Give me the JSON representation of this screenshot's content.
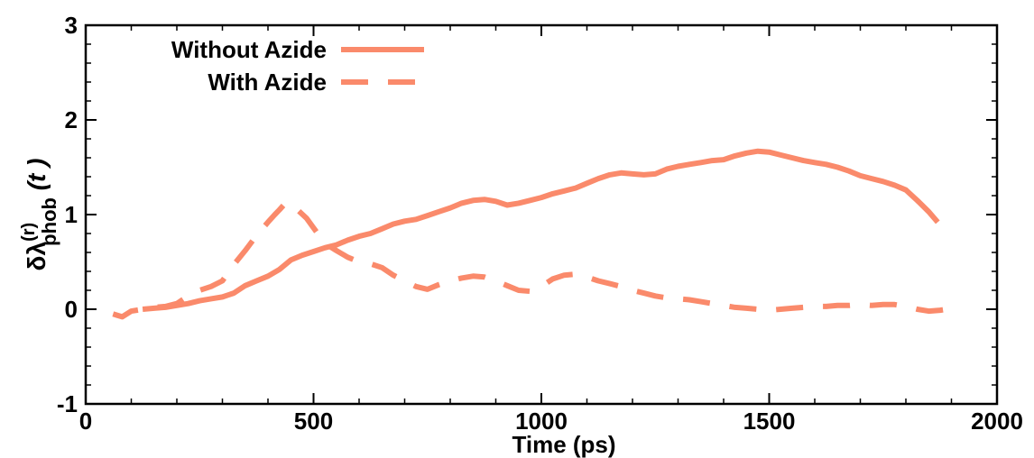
{
  "chart_data": {
    "type": "line",
    "xlabel": "Time (ps)",
    "ylabel": {
      "prefix": "δλ",
      "superscript": "(r)",
      "subscript": "phob",
      "suffix": " (t )"
    },
    "xlim": [
      0,
      2000
    ],
    "ylim": [
      -1,
      3
    ],
    "xticks": [
      0,
      500,
      1000,
      1500,
      2000
    ],
    "yticks": [
      -1,
      0,
      1,
      2,
      3
    ],
    "grid": false,
    "legend_position": "top-left",
    "series_color": "#FA8A6B",
    "series": [
      {
        "name": "Without Azide",
        "style": "solid",
        "points": [
          [
            125,
            0.0
          ],
          [
            150,
            0.01
          ],
          [
            175,
            0.02
          ],
          [
            200,
            0.04
          ],
          [
            225,
            0.06
          ],
          [
            250,
            0.09
          ],
          [
            275,
            0.11
          ],
          [
            300,
            0.13
          ],
          [
            325,
            0.17
          ],
          [
            350,
            0.25
          ],
          [
            375,
            0.3
          ],
          [
            400,
            0.35
          ],
          [
            425,
            0.42
          ],
          [
            450,
            0.52
          ],
          [
            475,
            0.57
          ],
          [
            500,
            0.61
          ],
          [
            525,
            0.65
          ],
          [
            550,
            0.68
          ],
          [
            575,
            0.73
          ],
          [
            600,
            0.77
          ],
          [
            625,
            0.8
          ],
          [
            650,
            0.85
          ],
          [
            675,
            0.9
          ],
          [
            700,
            0.93
          ],
          [
            725,
            0.95
          ],
          [
            750,
            0.99
          ],
          [
            775,
            1.03
          ],
          [
            800,
            1.07
          ],
          [
            825,
            1.12
          ],
          [
            850,
            1.15
          ],
          [
            875,
            1.16
          ],
          [
            900,
            1.14
          ],
          [
            925,
            1.1
          ],
          [
            950,
            1.12
          ],
          [
            975,
            1.15
          ],
          [
            1000,
            1.18
          ],
          [
            1025,
            1.22
          ],
          [
            1050,
            1.25
          ],
          [
            1075,
            1.28
          ],
          [
            1100,
            1.33
          ],
          [
            1125,
            1.38
          ],
          [
            1150,
            1.42
          ],
          [
            1175,
            1.44
          ],
          [
            1200,
            1.43
          ],
          [
            1225,
            1.42
          ],
          [
            1250,
            1.43
          ],
          [
            1275,
            1.48
          ],
          [
            1300,
            1.51
          ],
          [
            1325,
            1.53
          ],
          [
            1350,
            1.55
          ],
          [
            1375,
            1.57
          ],
          [
            1400,
            1.58
          ],
          [
            1425,
            1.62
          ],
          [
            1450,
            1.65
          ],
          [
            1475,
            1.67
          ],
          [
            1500,
            1.66
          ],
          [
            1525,
            1.63
          ],
          [
            1550,
            1.6
          ],
          [
            1575,
            1.57
          ],
          [
            1600,
            1.55
          ],
          [
            1625,
            1.53
          ],
          [
            1650,
            1.5
          ],
          [
            1675,
            1.46
          ],
          [
            1700,
            1.41
          ],
          [
            1725,
            1.38
          ],
          [
            1750,
            1.35
          ],
          [
            1775,
            1.31
          ],
          [
            1800,
            1.26
          ],
          [
            1825,
            1.15
          ],
          [
            1850,
            1.03
          ],
          [
            1870,
            0.92
          ]
        ]
      },
      {
        "name": "With Azide",
        "style": "dashed",
        "points": [
          [
            60,
            -0.05
          ],
          [
            80,
            -0.08
          ],
          [
            100,
            -0.02
          ],
          [
            125,
            0.0
          ],
          [
            150,
            0.02
          ],
          [
            175,
            0.03
          ],
          [
            200,
            0.06
          ],
          [
            225,
            0.14
          ],
          [
            250,
            0.2
          ],
          [
            275,
            0.24
          ],
          [
            300,
            0.3
          ],
          [
            325,
            0.47
          ],
          [
            350,
            0.62
          ],
          [
            375,
            0.78
          ],
          [
            400,
            0.92
          ],
          [
            415,
            1.0
          ],
          [
            425,
            1.05
          ],
          [
            440,
            1.13
          ],
          [
            450,
            1.09
          ],
          [
            465,
            1.05
          ],
          [
            485,
            0.96
          ],
          [
            500,
            0.86
          ],
          [
            515,
            0.76
          ],
          [
            530,
            0.68
          ],
          [
            550,
            0.62
          ],
          [
            575,
            0.55
          ],
          [
            600,
            0.5
          ],
          [
            625,
            0.48
          ],
          [
            650,
            0.44
          ],
          [
            675,
            0.36
          ],
          [
            700,
            0.3
          ],
          [
            725,
            0.24
          ],
          [
            750,
            0.21
          ],
          [
            775,
            0.26
          ],
          [
            800,
            0.3
          ],
          [
            825,
            0.33
          ],
          [
            850,
            0.35
          ],
          [
            875,
            0.34
          ],
          [
            900,
            0.3
          ],
          [
            925,
            0.25
          ],
          [
            950,
            0.2
          ],
          [
            975,
            0.19
          ],
          [
            1000,
            0.24
          ],
          [
            1025,
            0.32
          ],
          [
            1050,
            0.36
          ],
          [
            1075,
            0.37
          ],
          [
            1100,
            0.34
          ],
          [
            1125,
            0.3
          ],
          [
            1150,
            0.27
          ],
          [
            1175,
            0.24
          ],
          [
            1200,
            0.2
          ],
          [
            1225,
            0.17
          ],
          [
            1250,
            0.14
          ],
          [
            1275,
            0.12
          ],
          [
            1300,
            0.11
          ],
          [
            1325,
            0.1
          ],
          [
            1350,
            0.08
          ],
          [
            1375,
            0.06
          ],
          [
            1400,
            0.04
          ],
          [
            1425,
            0.02
          ],
          [
            1450,
            0.01
          ],
          [
            1475,
            0.0
          ],
          [
            1500,
            -0.01
          ],
          [
            1525,
            0.0
          ],
          [
            1550,
            0.01
          ],
          [
            1575,
            0.02
          ],
          [
            1600,
            0.03
          ],
          [
            1625,
            0.03
          ],
          [
            1650,
            0.04
          ],
          [
            1675,
            0.04
          ],
          [
            1700,
            0.05
          ],
          [
            1725,
            0.04
          ],
          [
            1750,
            0.05
          ],
          [
            1775,
            0.05
          ],
          [
            1800,
            0.03
          ],
          [
            1825,
            0.0
          ],
          [
            1850,
            -0.02
          ],
          [
            1875,
            -0.01
          ],
          [
            1890,
            0.0
          ]
        ]
      }
    ]
  }
}
